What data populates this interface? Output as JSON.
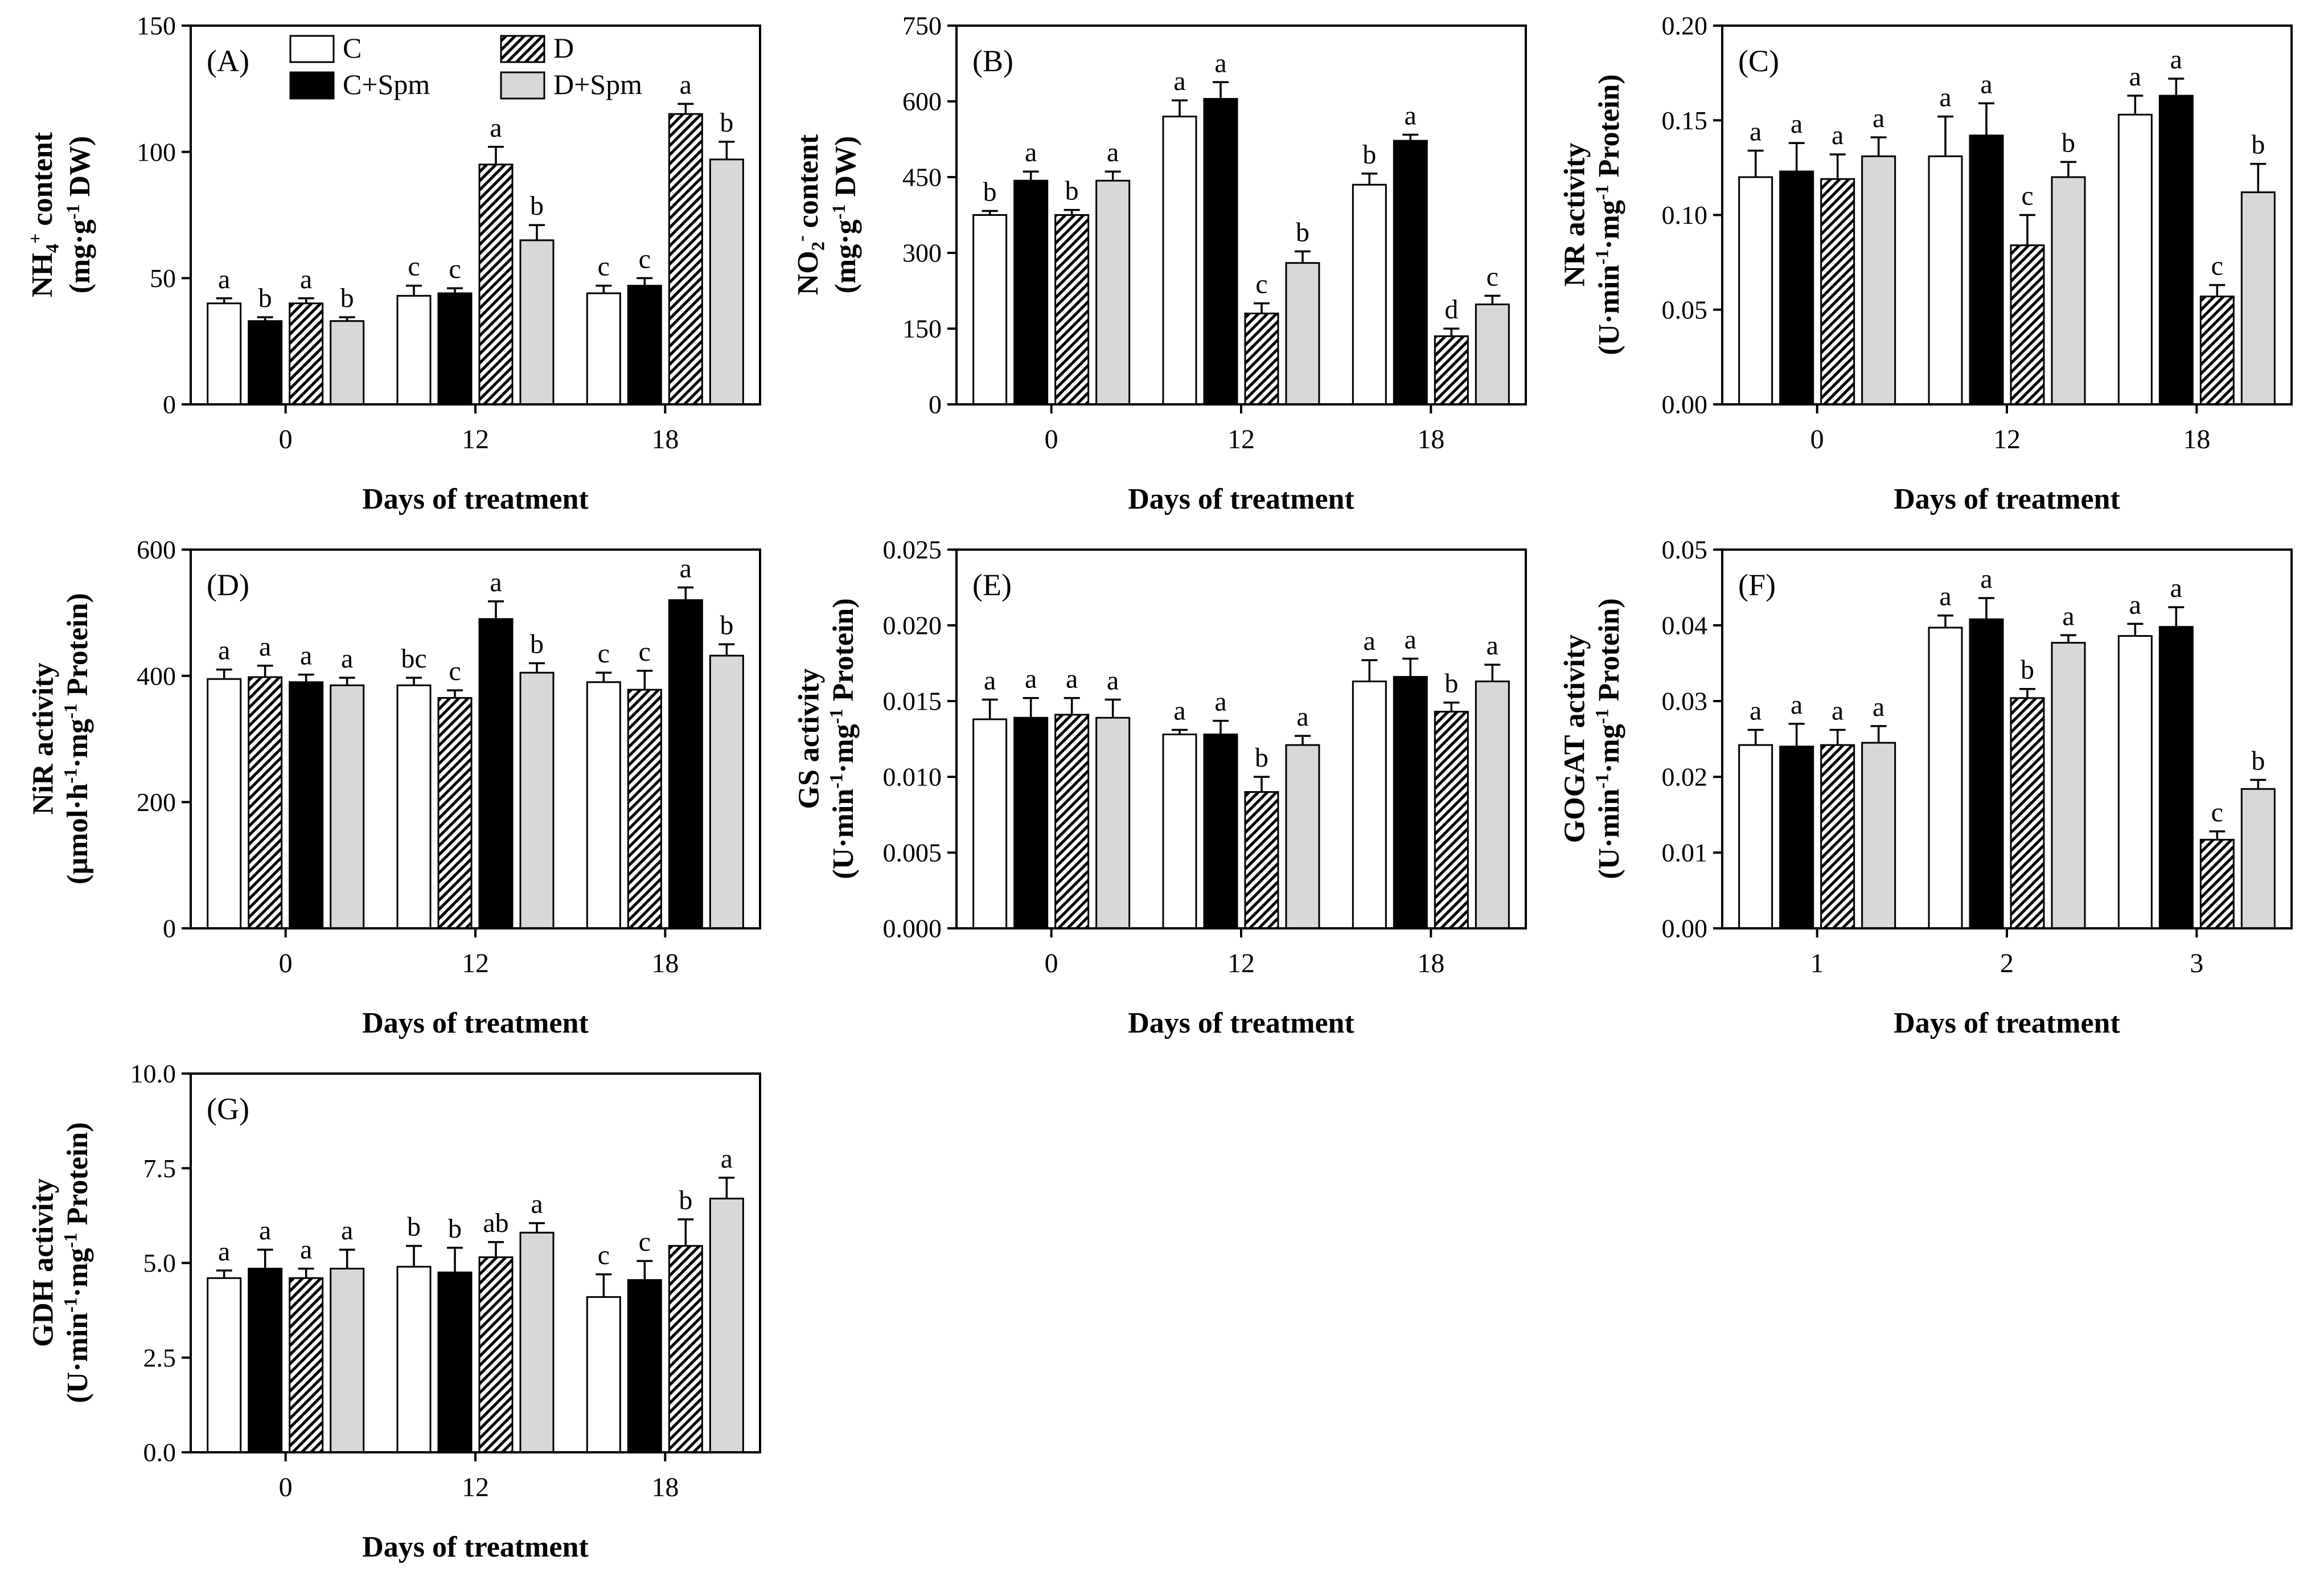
{
  "figure": {
    "xlabel": "Days of treatment",
    "background": "#ffffff",
    "axis_color": "#000000",
    "colors": {
      "white_fill": "#ffffff",
      "black_fill": "#000000",
      "gray_fill": "#d8d8d8",
      "hatch_line": "#000000"
    },
    "legend": [
      {
        "label": "C",
        "style": "white"
      },
      {
        "label": "C+Spm",
        "style": "black"
      },
      {
        "label": "D",
        "style": "hatch"
      },
      {
        "label": "D+Spm",
        "style": "gray"
      }
    ],
    "legend_position": "top-left-inside-panel-A"
  },
  "chart_data": [
    {
      "type": "bar",
      "panel": "A",
      "tag": "(A)",
      "ylabel": "NH~4~^+^ content",
      "yunits": "(mg·g^-1^ DW)",
      "ylim": [
        0,
        150
      ],
      "yticks": [
        0,
        50,
        100,
        150
      ],
      "ytick_labels": [
        "0",
        "50",
        "100",
        "150"
      ],
      "categories": [
        "0",
        "12",
        "18"
      ],
      "xlabel": "Days of treatment",
      "legend": true,
      "bar_order": [
        "C",
        "C+Spm",
        "D",
        "D+Spm"
      ],
      "series": [
        {
          "name": "C",
          "style": "white",
          "values": [
            40,
            43,
            44
          ],
          "errors": [
            2,
            4,
            3
          ],
          "letters": [
            "a",
            "c",
            "c"
          ]
        },
        {
          "name": "C+Spm",
          "style": "black",
          "values": [
            33,
            44,
            47
          ],
          "errors": [
            1.5,
            2,
            3
          ],
          "letters": [
            "b",
            "c",
            "c"
          ]
        },
        {
          "name": "D",
          "style": "hatch",
          "values": [
            40,
            95,
            115
          ],
          "errors": [
            2,
            7,
            4
          ],
          "letters": [
            "a",
            "a",
            "a"
          ]
        },
        {
          "name": "D+Spm",
          "style": "gray",
          "values": [
            33,
            65,
            97
          ],
          "errors": [
            1.5,
            6,
            7
          ],
          "letters": [
            "b",
            "b",
            "b"
          ]
        }
      ]
    },
    {
      "type": "bar",
      "panel": "B",
      "tag": "(B)",
      "ylabel": "NO~2~^-^ content",
      "yunits": "(mg·g^-1^ DW)",
      "ylim": [
        0,
        750
      ],
      "yticks": [
        0,
        150,
        300,
        450,
        600,
        750
      ],
      "ytick_labels": [
        "0",
        "150",
        "300",
        "450",
        "600",
        "750"
      ],
      "categories": [
        "0",
        "12",
        "18"
      ],
      "xlabel": "Days of treatment",
      "legend": false,
      "bar_order": [
        "C",
        "C+Spm",
        "D",
        "D+Spm"
      ],
      "series": [
        {
          "name": "C",
          "style": "white",
          "values": [
            375,
            570,
            435
          ],
          "errors": [
            8,
            32,
            22
          ],
          "letters": [
            "b",
            "a",
            "b"
          ]
        },
        {
          "name": "C+Spm",
          "style": "black",
          "values": [
            443,
            605,
            522
          ],
          "errors": [
            18,
            33,
            12
          ],
          "letters": [
            "a",
            "a",
            "a"
          ]
        },
        {
          "name": "D",
          "style": "hatch",
          "values": [
            375,
            180,
            135
          ],
          "errors": [
            10,
            20,
            15
          ],
          "letters": [
            "b",
            "c",
            "d"
          ]
        },
        {
          "name": "D+Spm",
          "style": "gray",
          "values": [
            443,
            280,
            198
          ],
          "errors": [
            18,
            23,
            17
          ],
          "letters": [
            "a",
            "b",
            "c"
          ]
        }
      ]
    },
    {
      "type": "bar",
      "panel": "C",
      "tag": "(C)",
      "ylabel": "NR activity",
      "yunits": "(U·min^-1^·mg^-1^ Protein)",
      "ylim": [
        0,
        0.2
      ],
      "yticks": [
        0,
        0.05,
        0.1,
        0.15,
        0.2
      ],
      "ytick_labels": [
        "0.00",
        "0.05",
        "0.10",
        "0.15",
        "0.20"
      ],
      "categories": [
        "0",
        "12",
        "18"
      ],
      "xlabel": "Days of treatment",
      "legend": false,
      "bar_order": [
        "C",
        "C+Spm",
        "D",
        "D+Spm"
      ],
      "series": [
        {
          "name": "C",
          "style": "white",
          "values": [
            0.12,
            0.131,
            0.153
          ],
          "errors": [
            0.014,
            0.021,
            0.01
          ],
          "letters": [
            "a",
            "a",
            "a"
          ]
        },
        {
          "name": "C+Spm",
          "style": "black",
          "values": [
            0.123,
            0.142,
            0.163
          ],
          "errors": [
            0.015,
            0.017,
            0.009
          ],
          "letters": [
            "a",
            "a",
            "a"
          ]
        },
        {
          "name": "D",
          "style": "hatch",
          "values": [
            0.119,
            0.084,
            0.057
          ],
          "errors": [
            0.013,
            0.016,
            0.006
          ],
          "letters": [
            "a",
            "c",
            "c"
          ]
        },
        {
          "name": "D+Spm",
          "style": "gray",
          "values": [
            0.131,
            0.12,
            0.112
          ],
          "errors": [
            0.01,
            0.008,
            0.015
          ],
          "letters": [
            "a",
            "b",
            "b"
          ]
        }
      ]
    },
    {
      "type": "bar",
      "panel": "D",
      "tag": "(D)",
      "ylabel": "NiR activity",
      "yunits": "(µmol·h^-1^·mg^-1^ Protein)",
      "ylim": [
        0,
        600
      ],
      "yticks": [
        0,
        200,
        400,
        600
      ],
      "ytick_labels": [
        "0",
        "200",
        "400",
        "600"
      ],
      "categories": [
        "0",
        "12",
        "18"
      ],
      "xlabel": "Days of treatment",
      "legend": false,
      "bar_order": [
        "C",
        "D",
        "C+Spm",
        "D+Spm"
      ],
      "series": [
        {
          "name": "C",
          "style": "white",
          "values": [
            395,
            385,
            390
          ],
          "errors": [
            15,
            12,
            15
          ],
          "letters": [
            "a",
            "bc",
            "c"
          ]
        },
        {
          "name": "D",
          "style": "hatch",
          "values": [
            398,
            365,
            378
          ],
          "errors": [
            18,
            12,
            30
          ],
          "letters": [
            "a",
            "c",
            "c"
          ]
        },
        {
          "name": "C+Spm",
          "style": "black",
          "values": [
            390,
            490,
            520
          ],
          "errors": [
            12,
            28,
            20
          ],
          "letters": [
            "a",
            "a",
            "a"
          ]
        },
        {
          "name": "D+Spm",
          "style": "gray",
          "values": [
            385,
            405,
            432
          ],
          "errors": [
            12,
            15,
            18
          ],
          "letters": [
            "a",
            "b",
            "b"
          ]
        }
      ]
    },
    {
      "type": "bar",
      "panel": "E",
      "tag": "(E)",
      "ylabel": "GS activity",
      "yunits": "(U·min^-1^·mg^-1^ Protein)",
      "ylim": [
        0,
        0.025
      ],
      "yticks": [
        0,
        0.005,
        0.01,
        0.015,
        0.02,
        0.025
      ],
      "ytick_labels": [
        "0.000",
        "0.005",
        "0.010",
        "0.015",
        "0.020",
        "0.025"
      ],
      "categories": [
        "0",
        "12",
        "18"
      ],
      "xlabel": "Days of treatment",
      "legend": false,
      "bar_order": [
        "C",
        "C+Spm",
        "D",
        "D+Spm"
      ],
      "series": [
        {
          "name": "C",
          "style": "white",
          "values": [
            0.0138,
            0.0128,
            0.0163
          ],
          "errors": [
            0.0013,
            0.0003,
            0.0014
          ],
          "letters": [
            "a",
            "a",
            "a"
          ]
        },
        {
          "name": "C+Spm",
          "style": "black",
          "values": [
            0.0139,
            0.0128,
            0.0166
          ],
          "errors": [
            0.0013,
            0.0009,
            0.0012
          ],
          "letters": [
            "a",
            "a",
            "a"
          ]
        },
        {
          "name": "D",
          "style": "hatch",
          "values": [
            0.0141,
            0.009,
            0.0143
          ],
          "errors": [
            0.0011,
            0.001,
            0.0006
          ],
          "letters": [
            "a",
            "b",
            "b"
          ]
        },
        {
          "name": "D+Spm",
          "style": "gray",
          "values": [
            0.0139,
            0.0121,
            0.0163
          ],
          "errors": [
            0.0012,
            0.0006,
            0.0011
          ],
          "letters": [
            "a",
            "a",
            "a"
          ]
        }
      ]
    },
    {
      "type": "bar",
      "panel": "F",
      "tag": "(F)",
      "ylabel": "GOGAT activity",
      "yunits": "(U·min^-1^·mg^-1^ Protein)",
      "ylim": [
        0,
        0.05
      ],
      "yticks": [
        0,
        0.01,
        0.02,
        0.03,
        0.04,
        0.05
      ],
      "ytick_labels": [
        "0.00",
        "0.01",
        "0.02",
        "0.03",
        "0.04",
        "0.05"
      ],
      "categories": [
        "1",
        "2",
        "3"
      ],
      "xlabel": "Days of treatment",
      "legend": false,
      "bar_order": [
        "C",
        "C+Spm",
        "D",
        "D+Spm"
      ],
      "series": [
        {
          "name": "C",
          "style": "white",
          "values": [
            0.0242,
            0.0397,
            0.0386
          ],
          "errors": [
            0.002,
            0.0016,
            0.0016
          ],
          "letters": [
            "a",
            "a",
            "a"
          ]
        },
        {
          "name": "C+Spm",
          "style": "black",
          "values": [
            0.024,
            0.0408,
            0.0398
          ],
          "errors": [
            0.003,
            0.0028,
            0.0026
          ],
          "letters": [
            "a",
            "a",
            "a"
          ]
        },
        {
          "name": "D",
          "style": "hatch",
          "values": [
            0.0242,
            0.0304,
            0.0117
          ],
          "errors": [
            0.002,
            0.0012,
            0.0011
          ],
          "letters": [
            "a",
            "b",
            "c"
          ]
        },
        {
          "name": "D+Spm",
          "style": "gray",
          "values": [
            0.0245,
            0.0377,
            0.0184
          ],
          "errors": [
            0.0022,
            0.001,
            0.0012
          ],
          "letters": [
            "a",
            "a",
            "b"
          ]
        }
      ]
    },
    {
      "type": "bar",
      "panel": "G",
      "tag": "(G)",
      "ylabel": "GDH activity",
      "yunits": "(U·min^-1^·mg^-1^ Protein)",
      "ylim": [
        0,
        10
      ],
      "yticks": [
        0,
        2.5,
        5.0,
        7.5,
        10.0
      ],
      "ytick_labels": [
        "0.0",
        "2.5",
        "5.0",
        "7.5",
        "10.0"
      ],
      "categories": [
        "0",
        "12",
        "18"
      ],
      "xlabel": "Days of treatment",
      "legend": false,
      "bar_order": [
        "C",
        "C+Spm",
        "D",
        "D+Spm"
      ],
      "series": [
        {
          "name": "C",
          "style": "white",
          "values": [
            4.6,
            4.9,
            4.1
          ],
          "errors": [
            0.2,
            0.55,
            0.6
          ],
          "letters": [
            "a",
            "b",
            "c"
          ]
        },
        {
          "name": "C+Spm",
          "style": "black",
          "values": [
            4.85,
            4.75,
            4.55
          ],
          "errors": [
            0.5,
            0.65,
            0.5
          ],
          "letters": [
            "a",
            "b",
            "c"
          ]
        },
        {
          "name": "D",
          "style": "hatch",
          "values": [
            4.6,
            5.15,
            5.45
          ],
          "errors": [
            0.25,
            0.4,
            0.7
          ],
          "letters": [
            "a",
            "ab",
            "b"
          ]
        },
        {
          "name": "D+Spm",
          "style": "gray",
          "values": [
            4.85,
            5.8,
            6.7
          ],
          "errors": [
            0.5,
            0.25,
            0.55
          ],
          "letters": [
            "a",
            "a",
            "a"
          ]
        }
      ]
    }
  ]
}
